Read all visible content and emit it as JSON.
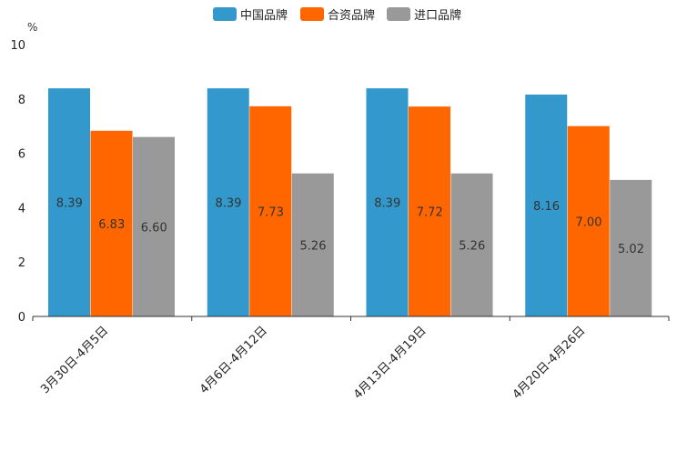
{
  "chart_data": {
    "type": "bar",
    "title": "",
    "xlabel": "",
    "ylabel": "%",
    "ylim": [
      0,
      10
    ],
    "yticks": [
      "0",
      "2",
      "4",
      "6",
      "8",
      "10"
    ],
    "grid": false,
    "legend_position": "top-center",
    "categories": [
      "3月30日-4月5日",
      "4月6日-4月12日",
      "4月13日-4月19日",
      "4月20日-4月26日"
    ],
    "series": [
      {
        "name": "中国品牌",
        "color": "#3399CC",
        "values": [
          8.39,
          8.39,
          8.39,
          8.16
        ],
        "labels": [
          "8.39",
          "8.39",
          "8.39",
          "8.16"
        ]
      },
      {
        "name": "合资品牌",
        "color": "#FF6600",
        "values": [
          6.83,
          7.73,
          7.72,
          7.0
        ],
        "labels": [
          "6.83",
          "7.73",
          "7.72",
          "7.00"
        ]
      },
      {
        "name": "进口品牌",
        "color": "#999999",
        "values": [
          6.6,
          5.26,
          5.26,
          5.02
        ],
        "labels": [
          "6.60",
          "5.26",
          "5.26",
          "5.02"
        ]
      }
    ]
  }
}
